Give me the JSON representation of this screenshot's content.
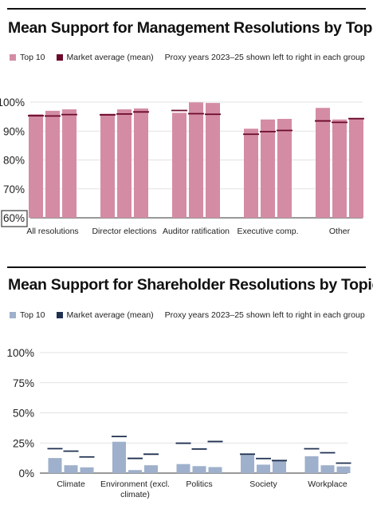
{
  "charts": [
    {
      "title": "Mean Support for Management Resolutions by Topic",
      "legend": {
        "series_label": "Top 10",
        "marker_label": "Market average (mean)",
        "note": "Proxy years 2023–25 shown left to right in each group"
      },
      "colors": {
        "bar": "#d48ca4",
        "marker": "#6b0a2a"
      }
    },
    {
      "title": "Mean Support for Shareholder Resolutions by Topic",
      "legend": {
        "series_label": "Top 10",
        "marker_label": "Market average (mean)",
        "note": "Proxy years 2023–25 shown left to right in each group"
      },
      "colors": {
        "bar": "#9eb0cb",
        "marker": "#1f3050"
      }
    }
  ],
  "chart_data": [
    {
      "type": "bar",
      "title": "Mean Support for Management Resolutions by Topic",
      "categories": [
        "All resolutions",
        "Director elections",
        "Auditor ratification",
        "Executive comp.",
        "Other"
      ],
      "years": [
        "2023",
        "2024",
        "2025"
      ],
      "ylim": [
        60,
        100
      ],
      "yticks": [
        "100%",
        "90%",
        "80%",
        "70%",
        "60%"
      ],
      "ytick_values": [
        100,
        90,
        80,
        70,
        60
      ],
      "highlighted_tick": "60%",
      "grid": true,
      "series": [
        {
          "name": "Top 10",
          "values": [
            [
              95.8,
              97.0,
              97.5
            ],
            [
              96.0,
              97.5,
              97.8
            ],
            [
              96.3,
              99.9,
              99.7
            ],
            [
              90.8,
              94.0,
              94.2
            ],
            [
              98.0,
              94.0,
              94.5
            ]
          ]
        },
        {
          "name": "Market average (mean)",
          "values": [
            [
              95.3,
              95.2,
              95.7
            ],
            [
              95.6,
              95.9,
              96.6
            ],
            [
              97.1,
              96.0,
              95.8
            ],
            [
              88.9,
              89.8,
              90.2
            ],
            [
              93.5,
              93.0,
              94.3
            ]
          ]
        }
      ]
    },
    {
      "type": "bar",
      "title": "Mean Support for Shareholder Resolutions by Topic",
      "categories": [
        "Climate",
        "Environment (excl. climate)",
        "Politics",
        "Society",
        "Workplace"
      ],
      "years": [
        "2023",
        "2024",
        "2025"
      ],
      "ylim": [
        0,
        100
      ],
      "yticks": [
        "100%",
        "75%",
        "50%",
        "25%",
        "0%"
      ],
      "ytick_values": [
        100,
        75,
        50,
        25,
        0
      ],
      "grid": true,
      "series": [
        {
          "name": "Top 10",
          "values": [
            [
              12.5,
              6.5,
              4.8
            ],
            [
              26.0,
              2.5,
              6.5
            ],
            [
              7.5,
              5.8,
              5.0
            ],
            [
              15.0,
              7.0,
              10.5
            ],
            [
              14.0,
              6.5,
              5.5
            ]
          ]
        },
        {
          "name": "Market average (mean)",
          "values": [
            [
              20.3,
              18.2,
              13.4
            ],
            [
              30.4,
              12.2,
              15.7
            ],
            [
              24.8,
              20.0,
              26.2
            ],
            [
              15.7,
              12.1,
              10.4
            ],
            [
              20.2,
              16.9,
              8.3
            ]
          ]
        }
      ]
    }
  ]
}
